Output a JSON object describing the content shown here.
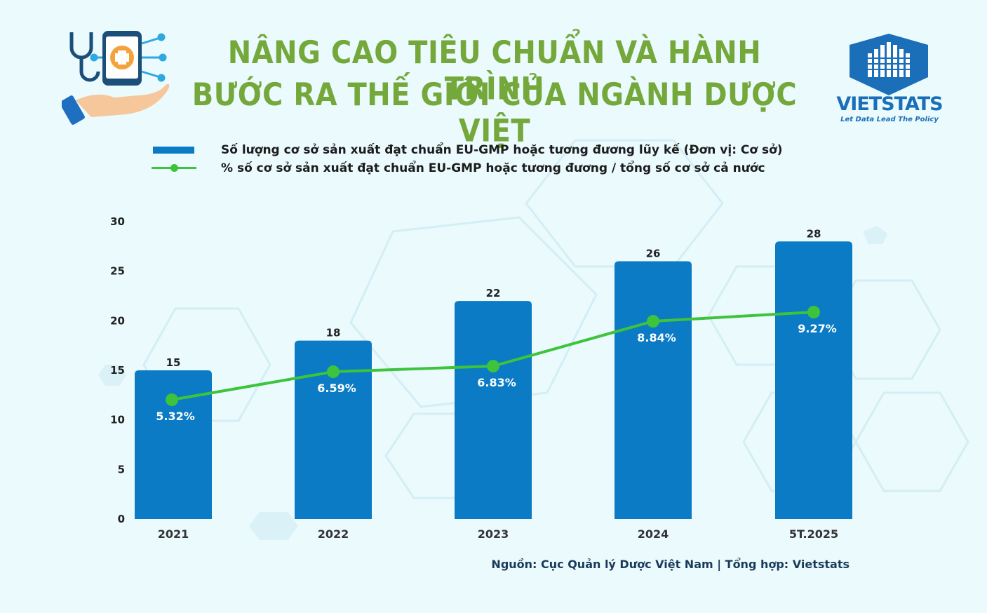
{
  "header": {
    "title_line_1": "NÂNG CAO TIÊU CHUẨN VÀ HÀNH TRÌNH",
    "title_line_2": "BƯỚC RA THẾ GIỚI CỦA NGÀNH DƯỢC VIỆT"
  },
  "brand": {
    "name": "VIETSTATS",
    "tagline": "Let Data Lead The Policy"
  },
  "legend": {
    "bar_label": "Số lượng cơ sở sản xuất đạt chuẩn EU-GMP hoặc tương đương lũy kế (Đơn vị: Cơ sở)",
    "line_label": "% số cơ sở sản xuất đạt chuẩn EU-GMP hoặc tương đương / tổng số cơ sở cả nước"
  },
  "source": "Nguồn: Cục Quản lý Dược Việt Nam | Tổng hợp: Vietstats",
  "colors": {
    "title": "#74a83a",
    "bar": "#0a7bc4",
    "line": "#3ec33c",
    "brand": "#1b6fb8",
    "background": "#eafafd"
  },
  "icons": [
    "medical-tablet-hand-icon",
    "vietstats-logo-icon"
  ],
  "chart_data": {
    "type": "bar",
    "categories": [
      "2021",
      "2022",
      "2023",
      "2024",
      "5T.2025"
    ],
    "ylim": [
      0,
      30
    ],
    "yticks": [
      "0",
      "5",
      "10",
      "15",
      "20",
      "25",
      "30"
    ],
    "grid": false,
    "legend_position": "top",
    "series": [
      {
        "name": "Số lượng cơ sở sản xuất đạt chuẩn EU-GMP hoặc tương đương lũy kế (Đơn vị: Cơ sở)",
        "type": "bar",
        "values": [
          15,
          18,
          22,
          26,
          28
        ],
        "labels": [
          "15",
          "18",
          "22",
          "26",
          "28"
        ]
      },
      {
        "name": "% số cơ sở sản xuất đạt chuẩn EU-GMP hoặc tương đương / tổng số cơ sở cả nước",
        "type": "line",
        "values": [
          5.32,
          6.59,
          6.83,
          8.84,
          9.27
        ],
        "labels": [
          "5.32%",
          "6.59%",
          "6.83%",
          "8.84%",
          "9.27%"
        ]
      }
    ]
  }
}
